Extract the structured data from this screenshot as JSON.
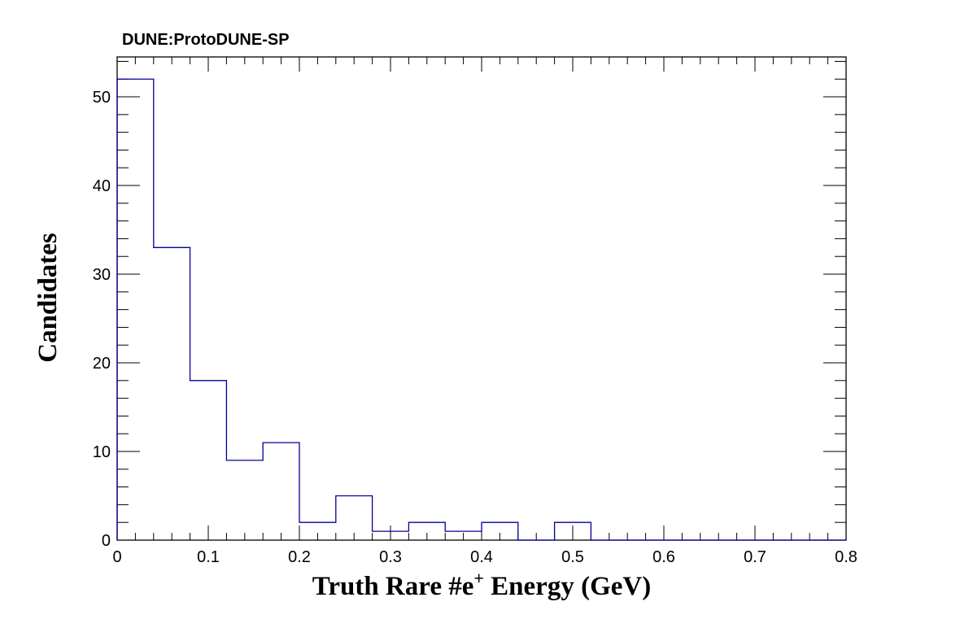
{
  "chart_data": {
    "type": "bar",
    "title": "DUNE:ProtoDUNE-SP",
    "xlabel_parts": [
      "Truth Rare #e",
      "+",
      " Energy (GeV)"
    ],
    "ylabel": "Candidates",
    "xlim": [
      0,
      0.8
    ],
    "ylim": [
      0,
      54.5
    ],
    "x_ticks": [
      {
        "value": 0,
        "label": "0"
      },
      {
        "value": 0.1,
        "label": "0.1"
      },
      {
        "value": 0.2,
        "label": "0.2"
      },
      {
        "value": 0.3,
        "label": "0.3"
      },
      {
        "value": 0.4,
        "label": "0.4"
      },
      {
        "value": 0.5,
        "label": "0.5"
      },
      {
        "value": 0.6,
        "label": "0.6"
      },
      {
        "value": 0.7,
        "label": "0.7"
      },
      {
        "value": 0.8,
        "label": "0.8"
      }
    ],
    "y_ticks": [
      {
        "value": 0,
        "label": "0"
      },
      {
        "value": 10,
        "label": "10"
      },
      {
        "value": 20,
        "label": "20"
      },
      {
        "value": 30,
        "label": "30"
      },
      {
        "value": 40,
        "label": "40"
      },
      {
        "value": 50,
        "label": "50"
      }
    ],
    "bin_edges": [
      0,
      0.04,
      0.08,
      0.12,
      0.16,
      0.2,
      0.24,
      0.28,
      0.32,
      0.36,
      0.4,
      0.44,
      0.48,
      0.52,
      0.56,
      0.6,
      0.64,
      0.68,
      0.72,
      0.76,
      0.8
    ],
    "values": [
      52,
      33,
      18,
      9,
      11,
      2,
      5,
      1,
      2,
      1,
      2,
      0,
      2,
      0,
      0,
      0,
      0,
      0,
      0,
      0
    ],
    "line_color": "#000099",
    "grid": false,
    "legend": "none"
  }
}
